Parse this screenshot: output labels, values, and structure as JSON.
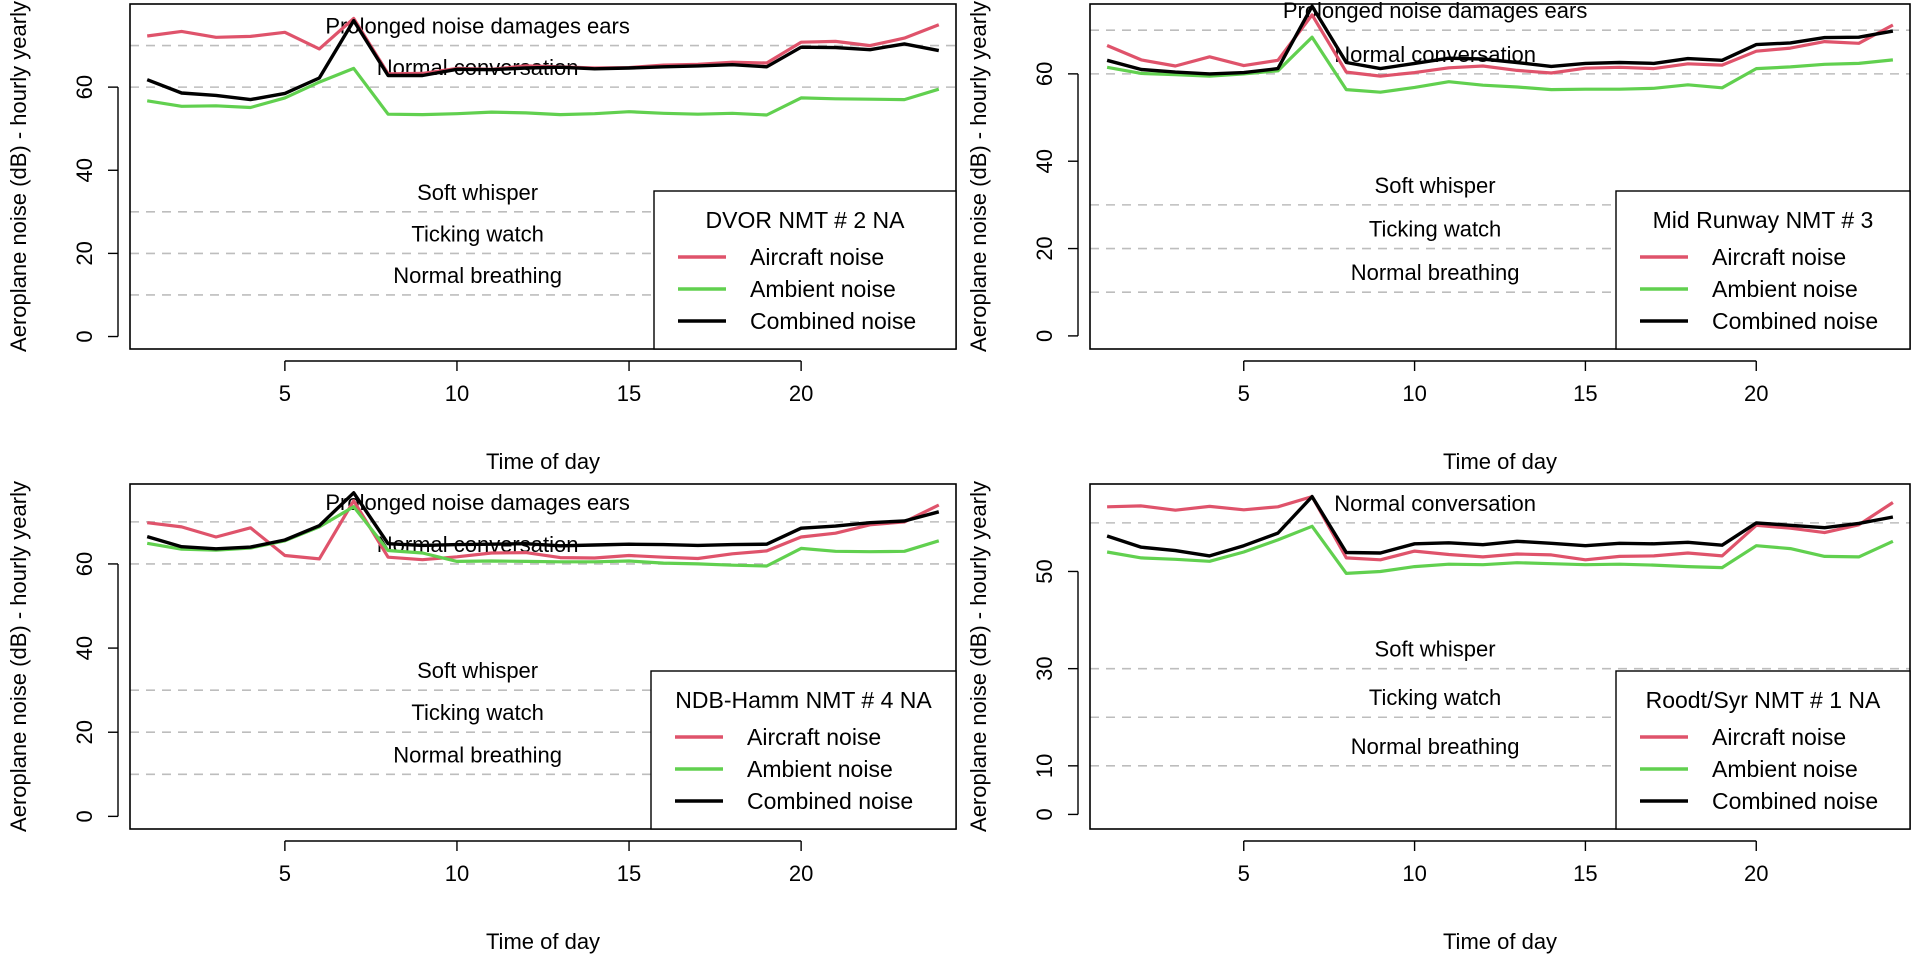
{
  "chart_data": [
    {
      "type": "line",
      "title": "DVOR NMT # 2 NA",
      "xlabel": "Time of day",
      "ylabel": "Aeroplane noise (dB) - hourly yearly",
      "x": [
        1,
        2,
        3,
        4,
        5,
        6,
        7,
        8,
        9,
        10,
        11,
        12,
        13,
        14,
        15,
        16,
        17,
        18,
        19,
        20,
        21,
        22,
        23,
        24
      ],
      "xlim": [
        0.5,
        24.5
      ],
      "ylim": [
        -3,
        80
      ],
      "xticks": [
        5,
        10,
        15,
        20
      ],
      "yticks": [
        0,
        20,
        40,
        60
      ],
      "ref_lines": [
        {
          "value": 70,
          "label": "Prolonged noise damages ears"
        },
        {
          "value": 60,
          "label": "Normal conversation"
        },
        {
          "value": 30,
          "label": "Soft whisper"
        },
        {
          "value": 20,
          "label": "Ticking watch"
        },
        {
          "value": 10,
          "label": "Normal breathing"
        }
      ],
      "legend_position": "bottom-right",
      "series": [
        {
          "name": "Aircraft noise",
          "color": "#DF536B",
          "values": [
            72.3,
            73.4,
            72.0,
            72.2,
            73.2,
            69.2,
            76.5,
            63.2,
            63.3,
            64.5,
            64.3,
            65.1,
            64.9,
            64.6,
            64.7,
            65.3,
            65.5,
            66.0,
            65.8,
            70.8,
            71.0,
            70.0,
            71.8,
            75.0
          ]
        },
        {
          "name": "Ambient noise",
          "color": "#61D04F",
          "values": [
            56.7,
            55.4,
            55.5,
            55.1,
            57.4,
            61.2,
            64.5,
            53.5,
            53.4,
            53.6,
            54.0,
            53.8,
            53.4,
            53.6,
            54.1,
            53.7,
            53.5,
            53.7,
            53.3,
            57.4,
            57.2,
            57.1,
            57.0,
            59.5
          ]
        },
        {
          "name": "Combined noise",
          "color": "#000000",
          "values": [
            61.8,
            58.6,
            58.0,
            57.0,
            58.5,
            62.2,
            76.0,
            62.8,
            62.8,
            64.3,
            64.2,
            64.6,
            64.8,
            64.4,
            64.6,
            64.9,
            65.1,
            65.4,
            64.9,
            69.6,
            69.5,
            69.0,
            70.4,
            68.8
          ]
        }
      ]
    },
    {
      "type": "line",
      "title": "Mid Runway NMT # 3",
      "xlabel": "Time of day",
      "ylabel": "Aeroplane noise (dB) - hourly yearly",
      "x": [
        1,
        2,
        3,
        4,
        5,
        6,
        7,
        8,
        9,
        10,
        11,
        12,
        13,
        14,
        15,
        16,
        17,
        18,
        19,
        20,
        21,
        22,
        23,
        24
      ],
      "xlim": [
        0.5,
        24.5
      ],
      "ylim": [
        -3,
        76
      ],
      "xticks": [
        5,
        10,
        15,
        20
      ],
      "yticks": [
        0,
        20,
        40,
        60
      ],
      "ref_lines": [
        {
          "value": 70,
          "label": "Prolonged noise damages ears"
        },
        {
          "value": 60,
          "label": "Normal conversation"
        },
        {
          "value": 30,
          "label": "Soft whisper"
        },
        {
          "value": 20,
          "label": "Ticking watch"
        },
        {
          "value": 10,
          "label": "Normal breathing"
        }
      ],
      "legend_position": "bottom-right",
      "series": [
        {
          "name": "Aircraft noise",
          "color": "#DF536B",
          "values": [
            66.5,
            63.2,
            61.8,
            63.9,
            61.9,
            63.1,
            73.5,
            60.4,
            59.5,
            60.3,
            61.4,
            61.8,
            60.8,
            60.2,
            61.3,
            61.5,
            61.2,
            62.3,
            62.0,
            65.2,
            65.9,
            67.4,
            67.0,
            71.2
          ]
        },
        {
          "name": "Ambient noise",
          "color": "#61D04F",
          "values": [
            61.5,
            60.1,
            59.8,
            59.5,
            60.0,
            60.7,
            68.4,
            56.4,
            55.8,
            56.9,
            58.2,
            57.4,
            57.0,
            56.4,
            56.5,
            56.5,
            56.7,
            57.5,
            56.8,
            61.2,
            61.6,
            62.2,
            62.4,
            63.2
          ]
        },
        {
          "name": "Combined noise",
          "color": "#000000",
          "values": [
            63.1,
            61.0,
            60.4,
            60.0,
            60.3,
            61.2,
            75.5,
            62.6,
            61.2,
            62.4,
            63.6,
            63.4,
            62.6,
            61.7,
            62.4,
            62.6,
            62.4,
            63.5,
            63.1,
            66.7,
            67.1,
            68.3,
            68.4,
            69.8
          ]
        }
      ]
    },
    {
      "type": "line",
      "title": "NDB-Hamm NMT # 4 NA",
      "xlabel": "Time of day",
      "ylabel": "Aeroplane noise (dB) - hourly yearly",
      "x": [
        1,
        2,
        3,
        4,
        5,
        6,
        7,
        8,
        9,
        10,
        11,
        12,
        13,
        14,
        15,
        16,
        17,
        18,
        19,
        20,
        21,
        22,
        23,
        24
      ],
      "xlim": [
        0.5,
        24.5
      ],
      "ylim": [
        -3,
        79
      ],
      "xticks": [
        5,
        10,
        15,
        20
      ],
      "yticks": [
        0,
        20,
        40,
        60
      ],
      "ref_lines": [
        {
          "value": 70,
          "label": "Prolonged noise damages ears"
        },
        {
          "value": 60,
          "label": "Normal conversation"
        },
        {
          "value": 30,
          "label": "Soft whisper"
        },
        {
          "value": 20,
          "label": "Ticking watch"
        },
        {
          "value": 10,
          "label": "Normal breathing"
        }
      ],
      "legend_position": "bottom-right",
      "series": [
        {
          "name": "Aircraft noise",
          "color": "#DF536B",
          "values": [
            69.8,
            68.8,
            66.4,
            68.6,
            62.0,
            61.2,
            75.0,
            61.6,
            61.0,
            61.7,
            62.6,
            62.7,
            61.5,
            61.4,
            62.0,
            61.6,
            61.3,
            62.4,
            63.1,
            66.4,
            67.3,
            69.3,
            70.0,
            74.0
          ]
        },
        {
          "name": "Ambient noise",
          "color": "#61D04F",
          "values": [
            64.9,
            63.5,
            63.3,
            63.8,
            65.5,
            68.8,
            73.6,
            63.2,
            62.6,
            60.6,
            60.7,
            60.6,
            60.5,
            60.5,
            60.7,
            60.2,
            60.0,
            59.7,
            59.5,
            63.7,
            63.0,
            62.9,
            63.0,
            65.5
          ]
        },
        {
          "name": "Combined noise",
          "color": "#000000",
          "values": [
            66.5,
            64.1,
            63.6,
            64.0,
            65.7,
            69.1,
            76.9,
            64.8,
            64.4,
            64.6,
            64.7,
            64.8,
            64.3,
            64.5,
            64.7,
            64.6,
            64.4,
            64.6,
            64.7,
            68.5,
            69.0,
            69.8,
            70.2,
            72.4
          ]
        }
      ]
    },
    {
      "type": "line",
      "title": "Roodt/Syr NMT # 1 NA",
      "xlabel": "Time of day",
      "ylabel": "Aeroplane noise (dB) - hourly yearly",
      "x": [
        1,
        2,
        3,
        4,
        5,
        6,
        7,
        8,
        9,
        10,
        11,
        12,
        13,
        14,
        15,
        16,
        17,
        18,
        19,
        20,
        21,
        22,
        23,
        24
      ],
      "xlim": [
        0.5,
        24.5
      ],
      "ylim": [
        -3,
        68
      ],
      "xticks": [
        5,
        10,
        15,
        20
      ],
      "yticks": [
        0,
        10,
        30,
        50
      ],
      "ref_lines": [
        {
          "value": 60,
          "label": "Normal conversation"
        },
        {
          "value": 30,
          "label": "Soft whisper"
        },
        {
          "value": 20,
          "label": "Ticking watch"
        },
        {
          "value": 10,
          "label": "Normal breathing"
        }
      ],
      "legend_position": "bottom-right",
      "series": [
        {
          "name": "Aircraft noise",
          "color": "#DF536B",
          "values": [
            63.3,
            63.5,
            62.6,
            63.4,
            62.7,
            63.3,
            65.4,
            52.8,
            52.4,
            54.2,
            53.5,
            53.0,
            53.6,
            53.4,
            52.4,
            53.1,
            53.2,
            53.8,
            53.2,
            59.5,
            58.9,
            58.0,
            59.6,
            64.2
          ]
        },
        {
          "name": "Ambient noise",
          "color": "#61D04F",
          "values": [
            54.0,
            52.8,
            52.5,
            52.1,
            54.0,
            56.5,
            59.3,
            49.6,
            50.0,
            51.0,
            51.5,
            51.4,
            51.8,
            51.6,
            51.4,
            51.5,
            51.3,
            51.0,
            50.8,
            55.3,
            54.7,
            53.1,
            53.0,
            56.2
          ]
        },
        {
          "name": "Combined noise",
          "color": "#000000",
          "values": [
            57.3,
            55.0,
            54.3,
            53.2,
            55.3,
            57.9,
            65.4,
            53.9,
            53.8,
            55.7,
            55.9,
            55.5,
            56.2,
            55.8,
            55.3,
            55.8,
            55.7,
            56.0,
            55.4,
            60.0,
            59.5,
            59.0,
            59.9,
            61.2
          ]
        }
      ]
    }
  ]
}
